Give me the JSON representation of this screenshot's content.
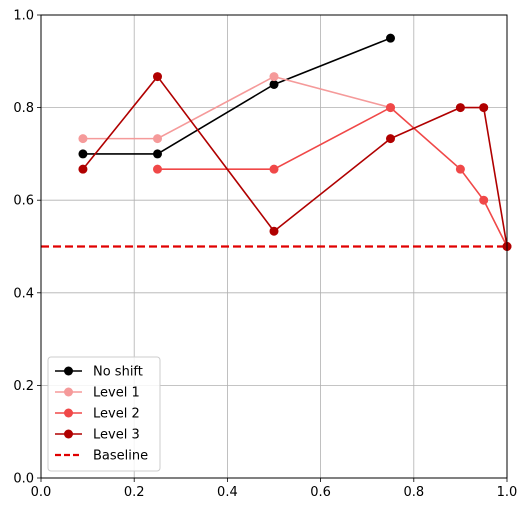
{
  "chart_data": {
    "type": "line",
    "title": "",
    "xlabel": "",
    "ylabel": "",
    "xlim": [
      0,
      1
    ],
    "ylim": [
      0,
      1
    ],
    "xticks": [
      0.0,
      0.2,
      0.4,
      0.6,
      0.8,
      1.0
    ],
    "yticks": [
      0.0,
      0.2,
      0.4,
      0.6,
      0.8,
      1.0
    ],
    "xtick_labels": [
      "0.0",
      "0.2",
      "0.4",
      "0.6",
      "0.8",
      "1.0"
    ],
    "ytick_labels": [
      "0.0",
      "0.2",
      "0.4",
      "0.6",
      "0.8",
      "1.0"
    ],
    "grid": true,
    "legend_position": "lower-left",
    "series": [
      {
        "name": "No shift",
        "color": "#000000",
        "marker": "circle",
        "x": [
          0.09,
          0.25,
          0.5,
          0.75
        ],
        "y": [
          0.7,
          0.7,
          0.85,
          0.95
        ]
      },
      {
        "name": "Level 1",
        "color": "#f59a9a",
        "marker": "circle",
        "x": [
          0.09,
          0.25,
          0.5,
          0.75
        ],
        "y": [
          0.733,
          0.733,
          0.867,
          0.8
        ]
      },
      {
        "name": "Level 2",
        "color": "#f04848",
        "marker": "circle",
        "x": [
          0.25,
          0.5,
          0.75,
          0.9,
          0.95,
          1.0
        ],
        "y": [
          0.667,
          0.667,
          0.8,
          0.667,
          0.6,
          0.5
        ]
      },
      {
        "name": "Level 3",
        "color": "#b00000",
        "marker": "circle",
        "x": [
          0.09,
          0.25,
          0.5,
          0.75,
          0.9,
          0.95,
          1.0
        ],
        "y": [
          0.667,
          0.867,
          0.533,
          0.733,
          0.8,
          0.8,
          0.5
        ]
      }
    ],
    "baseline": {
      "name": "Baseline",
      "color": "#e00000",
      "style": "dashed",
      "y": 0.5
    }
  }
}
